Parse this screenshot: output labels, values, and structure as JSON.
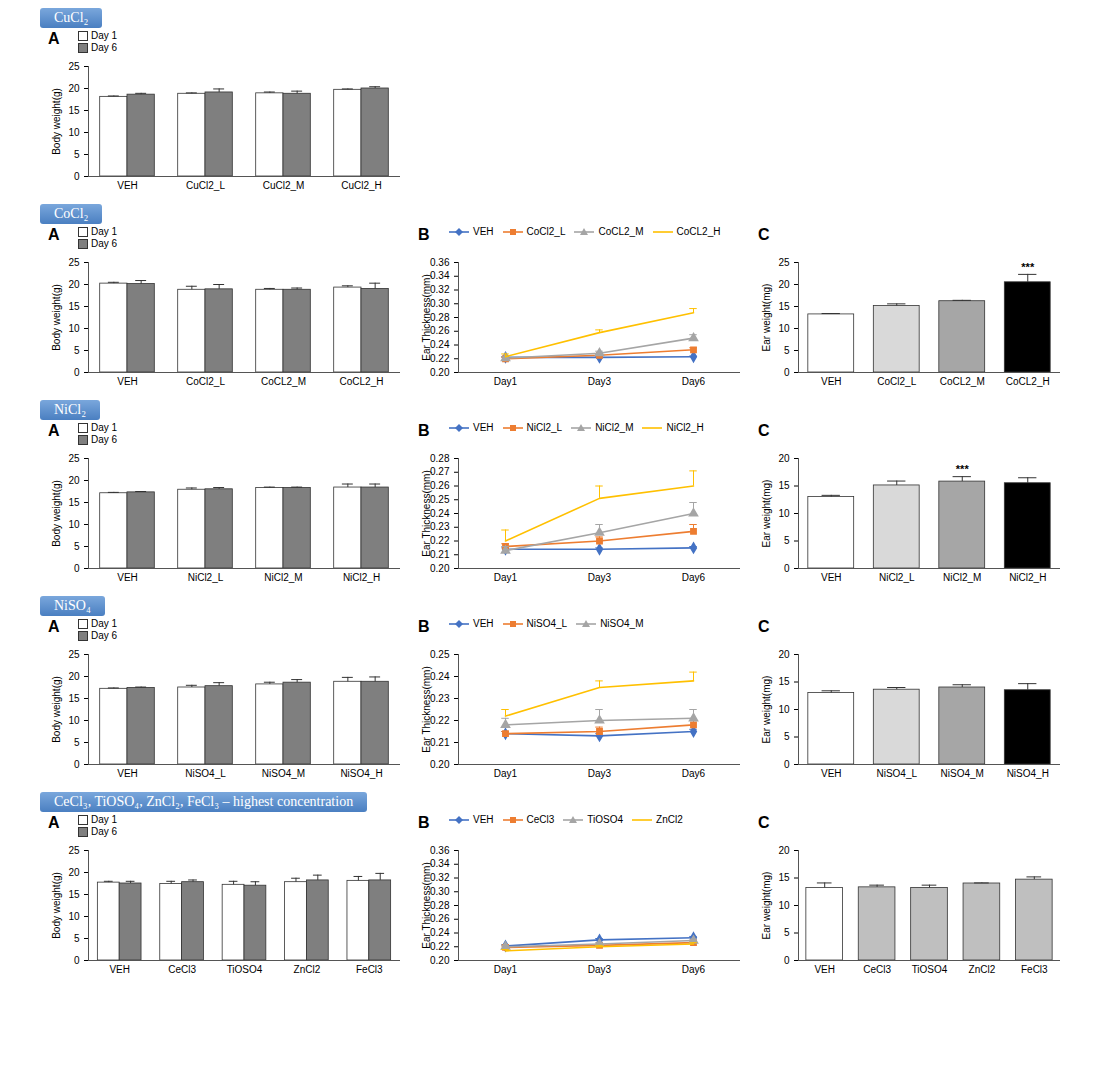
{
  "chart_data": [
    {
      "section": "CuCl₂",
      "panel": "A",
      "type": "bar",
      "y_label": "Body weight(g)",
      "categories": [
        "VEH",
        "CuCl2_L",
        "CuCl2_M",
        "CuCl2_H"
      ],
      "series": [
        {
          "name": "Day 1",
          "color": "#ffffff",
          "values": [
            18.1,
            18.8,
            18.9,
            19.7
          ],
          "errors": [
            0.2,
            0.2,
            0.3,
            0.2
          ]
        },
        {
          "name": "Day 6",
          "color": "#7f7f7f",
          "values": [
            18.6,
            19.1,
            18.8,
            20.0
          ],
          "errors": [
            0.3,
            0.8,
            0.6,
            0.4
          ]
        }
      ],
      "ylim": [
        0,
        25
      ],
      "yticks": [
        0,
        5,
        10,
        15,
        20,
        25
      ],
      "legend": "top-left"
    },
    {
      "section": "CoCl₂",
      "panel": "A",
      "type": "bar",
      "y_label": "Body weight(g)",
      "categories": [
        "VEH",
        "CoCl2_L",
        "CoCL2_M",
        "CoCL2_H"
      ],
      "series": [
        {
          "name": "Day 1",
          "color": "#ffffff",
          "values": [
            20.2,
            18.8,
            18.8,
            19.3
          ],
          "errors": [
            0.3,
            0.8,
            0.3,
            0.4
          ]
        },
        {
          "name": "Day 6",
          "color": "#7f7f7f",
          "values": [
            20.1,
            18.9,
            18.8,
            19.0
          ],
          "errors": [
            0.8,
            1.1,
            0.4,
            1.3
          ]
        }
      ],
      "ylim": [
        0,
        25
      ],
      "yticks": [
        0,
        5,
        10,
        15,
        20,
        25
      ],
      "legend": "top-left"
    },
    {
      "section": "CoCl₂",
      "panel": "B",
      "type": "line",
      "y_label": "Ear Thickness(mm)",
      "categories": [
        "Day1",
        "Day3",
        "Day6"
      ],
      "series": [
        {
          "name": "VEH",
          "color": "#4472c4",
          "marker": "diamond",
          "values": [
            0.222,
            0.222,
            0.223
          ],
          "errors": [
            0.001,
            0.001,
            0.001
          ]
        },
        {
          "name": "CoCl2_L",
          "color": "#ed7d31",
          "marker": "square",
          "values": [
            0.22,
            0.225,
            0.233
          ],
          "errors": [
            0.002,
            0.002,
            0.003
          ]
        },
        {
          "name": "CoCL2_M",
          "color": "#a5a5a5",
          "marker": "triangle",
          "values": [
            0.221,
            0.228,
            0.25
          ],
          "errors": [
            0.002,
            0.003,
            0.005
          ]
        },
        {
          "name": "CoCL2_H",
          "color": "#ffc000",
          "marker": "none",
          "values": [
            0.223,
            0.258,
            0.287
          ],
          "errors": [
            0.004,
            0.004,
            0.006
          ]
        }
      ],
      "ylim": [
        0.2,
        0.36
      ],
      "yticks": [
        {
          "value": 0.2,
          "label": "0.20"
        },
        0.22,
        0.24,
        0.26,
        0.28,
        {
          "value": 0.3,
          "label": "0.30"
        },
        0.32,
        0.34,
        0.36
      ],
      "legend": "top-left"
    },
    {
      "section": "CoCl₂",
      "panel": "C",
      "type": "bar",
      "y_label": "Ear weight(mg)",
      "categories": [
        "VEH",
        "CoCl2_L",
        "CoCL2_M",
        "CoCL2_H"
      ],
      "values": [
        13.2,
        15.1,
        16.2,
        20.5
      ],
      "errors": [
        0.2,
        0.5,
        0.2,
        1.8
      ],
      "colors": [
        "#ffffff",
        "#d9d9d9",
        "#a6a6a6",
        "#000000"
      ],
      "annotations": [
        {
          "category": "CoCL2_H",
          "text": "***"
        }
      ],
      "ylim": [
        0,
        25
      ],
      "yticks": [
        0,
        5,
        10,
        15,
        20,
        25
      ]
    },
    {
      "section": "NiCl₂",
      "panel": "A",
      "type": "bar",
      "y_label": "Body weight(g)",
      "categories": [
        "VEH",
        "NiCl2_L",
        "NiCl2_M",
        "NiCl2_H"
      ],
      "series": [
        {
          "name": "Day 1",
          "color": "#ffffff",
          "values": [
            17.1,
            17.9,
            18.3,
            18.4
          ],
          "errors": [
            0.2,
            0.4,
            0.2,
            0.8
          ]
        },
        {
          "name": "Day 6",
          "color": "#7f7f7f",
          "values": [
            17.3,
            18.0,
            18.3,
            18.4
          ],
          "errors": [
            0.2,
            0.4,
            0.2,
            0.8
          ]
        }
      ],
      "ylim": [
        0,
        25
      ],
      "yticks": [
        0,
        5,
        10,
        15,
        20,
        25
      ],
      "legend": "top-left"
    },
    {
      "section": "NiCl₂",
      "panel": "B",
      "type": "line",
      "y_label": "Ear Thickness(mm)",
      "categories": [
        "Day1",
        "Day3",
        "Day6"
      ],
      "series": [
        {
          "name": "VEH",
          "color": "#4472c4",
          "marker": "diamond",
          "values": [
            0.214,
            0.214,
            0.215
          ],
          "errors": [
            0.001,
            0.001,
            0.001
          ]
        },
        {
          "name": "NiCl2_L",
          "color": "#ed7d31",
          "marker": "square",
          "values": [
            0.216,
            0.22,
            0.227
          ],
          "errors": [
            0.002,
            0.003,
            0.005
          ]
        },
        {
          "name": "NiCl2_M",
          "color": "#a5a5a5",
          "marker": "triangle",
          "values": [
            0.213,
            0.226,
            0.24
          ],
          "errors": [
            0.003,
            0.006,
            0.008
          ]
        },
        {
          "name": "NiCl2_H",
          "color": "#ffc000",
          "marker": "none",
          "values": [
            0.22,
            0.251,
            0.26
          ],
          "errors": [
            0.008,
            0.009,
            0.011
          ]
        }
      ],
      "ylim": [
        0.2,
        0.28
      ],
      "yticks": [
        {
          "value": 0.2,
          "label": "0.20"
        },
        0.21,
        0.22,
        0.23,
        0.24,
        0.25,
        0.26,
        0.27,
        0.28
      ],
      "legend": "top-left"
    },
    {
      "section": "NiCl₂",
      "panel": "C",
      "type": "bar",
      "y_label": "Ear weight(mg)",
      "categories": [
        "VEH",
        "NiCl2_L",
        "NiCl2_M",
        "NiCl2_H"
      ],
      "values": [
        13.0,
        15.1,
        15.8,
        15.5
      ],
      "errors": [
        0.3,
        0.8,
        0.9,
        1.0
      ],
      "colors": [
        "#ffffff",
        "#d9d9d9",
        "#a6a6a6",
        "#000000"
      ],
      "annotations": [
        {
          "category": "NiCl2_M",
          "text": "***"
        }
      ],
      "ylim": [
        0,
        20
      ],
      "yticks": [
        0,
        5,
        10,
        15,
        20
      ]
    },
    {
      "section": "NiSO₄",
      "panel": "A",
      "type": "bar",
      "y_label": "Body weight(g)",
      "categories": [
        "VEH",
        "NiSO4_L",
        "NiSO4_M",
        "NiSO4_H"
      ],
      "series": [
        {
          "name": "Day 1",
          "color": "#ffffff",
          "values": [
            17.2,
            17.5,
            18.2,
            18.8
          ],
          "errors": [
            0.2,
            0.5,
            0.5,
            1.0
          ]
        },
        {
          "name": "Day 6",
          "color": "#7f7f7f",
          "values": [
            17.4,
            17.8,
            18.6,
            18.8
          ],
          "errors": [
            0.2,
            0.8,
            0.7,
            1.1
          ]
        }
      ],
      "ylim": [
        0,
        25
      ],
      "yticks": [
        0,
        5,
        10,
        15,
        20,
        25
      ],
      "legend": "top-left"
    },
    {
      "section": "NiSO₄",
      "panel": "B",
      "type": "line",
      "y_label": "Ear Thickness(mm)",
      "categories": [
        "Day1",
        "Day3",
        "Day6"
      ],
      "series": [
        {
          "name": "VEH",
          "color": "#4472c4",
          "marker": "diamond",
          "values": [
            0.214,
            0.213,
            0.215
          ],
          "errors": [
            0.001,
            0.001,
            0.001
          ]
        },
        {
          "name": "NiSO4_L",
          "color": "#ed7d31",
          "marker": "square",
          "values": [
            0.214,
            0.215,
            0.218
          ],
          "errors": [
            0.001,
            0.002,
            0.002
          ]
        },
        {
          "name": "NiSO4_M",
          "color": "#a5a5a5",
          "marker": "triangle",
          "values": [
            0.218,
            0.22,
            0.221
          ],
          "errors": [
            0.003,
            0.005,
            0.004
          ]
        },
        {
          "name": null,
          "color": "#ffc000",
          "marker": "none",
          "values": [
            0.222,
            0.235,
            0.238
          ],
          "errors": [
            0.003,
            0.003,
            0.004
          ]
        }
      ],
      "ylim": [
        0.2,
        0.25
      ],
      "yticks": [
        {
          "value": 0.2,
          "label": "0.20"
        },
        0.21,
        0.22,
        0.23,
        0.24,
        0.25
      ],
      "legend": "top-left"
    },
    {
      "section": "NiSO₄",
      "panel": "C",
      "type": "bar",
      "y_label": "Ear weight(mg)",
      "categories": [
        "VEH",
        "NiSO4_L",
        "NiSO4_M",
        "NiSO4_H"
      ],
      "values": [
        13.0,
        13.6,
        14.0,
        13.5
      ],
      "errors": [
        0.4,
        0.4,
        0.5,
        1.2
      ],
      "colors": [
        "#ffffff",
        "#d9d9d9",
        "#a6a6a6",
        "#000000"
      ],
      "ylim": [
        0,
        20
      ],
      "yticks": [
        0,
        5,
        10,
        15,
        20
      ]
    },
    {
      "section": "CeCl₃, TiOSO₄, ZnCl₂, FeCl₃ – highest concentration",
      "panel": "A",
      "type": "bar",
      "y_label": "Body weight(g)",
      "categories": [
        "VEH",
        "CeCl3",
        "TiOSO4",
        "ZnCl2",
        "FeCl3"
      ],
      "series": [
        {
          "name": "Day 1",
          "color": "#ffffff",
          "values": [
            17.7,
            17.4,
            17.2,
            17.8,
            18.1
          ],
          "errors": [
            0.3,
            0.6,
            0.8,
            0.9,
            1.0
          ]
        },
        {
          "name": "Day 6",
          "color": "#7f7f7f",
          "values": [
            17.5,
            17.8,
            17.0,
            18.2,
            18.2
          ],
          "errors": [
            0.5,
            0.5,
            0.9,
            1.2,
            1.6
          ]
        }
      ],
      "ylim": [
        0,
        25
      ],
      "yticks": [
        0,
        5,
        10,
        15,
        20,
        25
      ],
      "legend": "top-left"
    },
    {
      "section": "CeCl₃, TiOSO₄, ZnCl₂, FeCl₃ – highest concentration",
      "panel": "B",
      "type": "line",
      "y_label": "Ear Thickness(mm)",
      "categories": [
        "Day1",
        "Day3",
        "Day6"
      ],
      "series": [
        {
          "name": "VEH",
          "color": "#4472c4",
          "marker": "diamond",
          "values": [
            0.221,
            0.23,
            0.233
          ],
          "errors": [
            0.002,
            0.002,
            0.002
          ]
        },
        {
          "name": "CeCl3",
          "color": "#ed7d31",
          "marker": "square",
          "values": [
            0.219,
            0.222,
            0.226
          ],
          "errors": [
            0.002,
            0.002,
            0.002
          ]
        },
        {
          "name": "TiOSO4",
          "color": "#a5a5a5",
          "marker": "triangle",
          "values": [
            0.22,
            0.224,
            0.229
          ],
          "errors": [
            0.002,
            0.002,
            0.002
          ]
        },
        {
          "name": "ZnCl2",
          "color": "#ffc000",
          "marker": "none",
          "values": [
            0.214,
            0.22,
            0.224
          ],
          "errors": [
            0.002,
            0.002,
            0.002
          ]
        }
      ],
      "ylim": [
        0.2,
        0.36
      ],
      "yticks": [
        {
          "value": 0.2,
          "label": "0.20"
        },
        0.22,
        0.24,
        0.26,
        0.28,
        {
          "value": 0.3,
          "label": "0.30"
        },
        0.32,
        0.34,
        0.36
      ],
      "legend": "top-left"
    },
    {
      "section": "CeCl₃, TiOSO₄, ZnCl₂, FeCl₃ – highest concentration",
      "panel": "C",
      "type": "bar",
      "y_label": "Ear weight(mg)",
      "categories": [
        "VEH",
        "CeCl3",
        "TiOSO4",
        "ZnCl2",
        "FeCl3"
      ],
      "values": [
        13.2,
        13.3,
        13.2,
        14.0,
        14.7
      ],
      "errors": [
        0.9,
        0.4,
        0.5,
        0.1,
        0.5
      ],
      "colors": [
        "#ffffff",
        "#bfbfbf",
        "#bfbfbf",
        "#bfbfbf",
        "#bfbfbf"
      ],
      "ylim": [
        0,
        20
      ],
      "yticks": [
        0,
        5,
        10,
        15,
        20
      ]
    }
  ]
}
